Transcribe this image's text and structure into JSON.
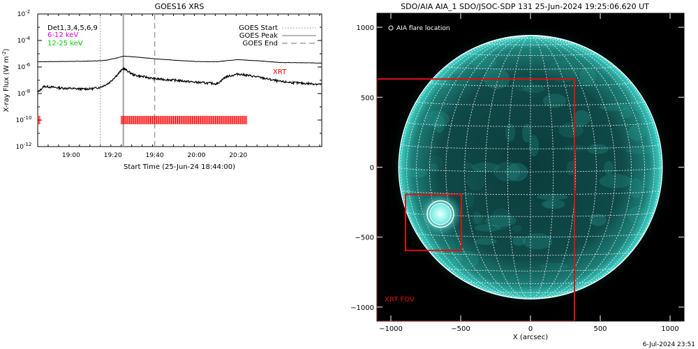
{
  "goes_panel": {
    "title": "GOES16 XRS",
    "ylabel": "X-ray Flux (W m",
    "ylabel_exp": "-2",
    "ylabel_close": ")",
    "xlabel": "Start Time (25-Jun-24 18:44:00)",
    "det_label": "Det1,3,4,5,6,9",
    "band_6_12": "6-12 keV",
    "band_12_25": "12-25 keV",
    "xrt_label": "XRT",
    "legend": [
      {
        "label": "GOES Start",
        "style": "dotted"
      },
      {
        "label": "GOES Peak",
        "style": "solid"
      },
      {
        "label": "GOES End",
        "style": "dashed"
      }
    ],
    "colors": {
      "band_6_12": "#e000e0",
      "band_12_25": "#00d000",
      "xrt": "#ff0000",
      "marker": "#a0a0a0"
    }
  },
  "aia_panel": {
    "title": "SDO/AIA AIA_1 SDO/JSOC-SDP 131 25-Jun-2024 19:25:06.620 UT",
    "legend_label": "AIA flare location",
    "fov_label": "XRT FOV",
    "xlabel": "X (arcsec)",
    "colors": {
      "disk": "#1fa8a0",
      "fov": "#e01010",
      "grid": "#ffffff"
    }
  },
  "footer": {
    "timestamp": "6-Jul-2024 23:51"
  },
  "chart_data": [
    {
      "type": "line",
      "title": "GOES16 XRS",
      "xlabel": "Start Time (25-Jun-24 18:44:00)",
      "ylabel": "X-ray Flux (W m^-2)",
      "yscale": "log",
      "xlim": [
        "18:44",
        "21:00"
      ],
      "ylim": [
        1e-12,
        0.01
      ],
      "x_ticks": [
        "19:00",
        "19:20",
        "19:40",
        "20:00",
        "20:20"
      ],
      "y_ticks": [
        {
          "mant": "10",
          "exp": "-12",
          "v": 1e-12
        },
        {
          "mant": "10",
          "exp": "-10",
          "v": 1e-10
        },
        {
          "mant": "10",
          "exp": "-8",
          "v": 1e-08
        },
        {
          "mant": "10",
          "exp": "-6",
          "v": 1e-06
        },
        {
          "mant": "10",
          "exp": "-4",
          "v": 0.0001
        },
        {
          "mant": "10",
          "exp": "-2",
          "v": 0.01
        }
      ],
      "series": [
        {
          "x": [
            "18:44",
            "18:55",
            "19:05",
            "19:12",
            "19:17",
            "19:21",
            "19:25",
            "19:32",
            "19:40",
            "19:50",
            "20:00",
            "20:10",
            "20:14",
            "20:20",
            "20:30",
            "20:40",
            "20:50",
            "21:00"
          ],
          "y": [
            2.5e-06,
            2.6e-06,
            2.7e-06,
            2.9e-06,
            3.3e-06,
            4.5e-06,
            6.5e-06,
            5.5e-06,
            4.2e-06,
            3.2e-06,
            2.6e-06,
            2.5e-06,
            3e-06,
            3.6e-06,
            2.9e-06,
            2.2e-06,
            2.1e-06,
            2e-06
          ]
        },
        {
          "x": [
            "18:44",
            "18:47",
            "18:55",
            "19:05",
            "19:10",
            "19:14",
            "19:18",
            "19:22",
            "19:25",
            "19:30",
            "19:40",
            "19:50",
            "20:00",
            "20:10",
            "20:14",
            "20:20",
            "20:30",
            "20:40",
            "20:50",
            "21:00"
          ],
          "y": [
            1.2e-08,
            3.5e-08,
            2.6e-08,
            2.2e-08,
            2.3e-08,
            3e-08,
            6e-08,
            2.5e-07,
            8e-07,
            2.5e-07,
            1.3e-07,
            1e-07,
            7e-08,
            5.5e-08,
            1.8e-07,
            3e-07,
            1.7e-07,
            8e-08,
            6e-08,
            5e-08
          ]
        }
      ],
      "markers": {
        "goes_start": "19:14",
        "goes_peak": "19:25",
        "goes_end": "19:40"
      },
      "xrt_obs": [
        {
          "start": "18:44",
          "end": "18:45"
        },
        {
          "start": "19:24",
          "end": "20:24"
        }
      ]
    },
    {
      "type": "scatter",
      "title": "SDO/AIA AIA_1 SDO/JSOC-SDP 131 25-Jun-2024 19:25:06.620 UT",
      "xlabel": "X (arcsec)",
      "ylabel": "",
      "xlim": [
        -1100,
        1100
      ],
      "ylim": [
        -1100,
        1100
      ],
      "x_ticks": [
        -1000,
        -500,
        0,
        500,
        1000
      ],
      "y_ticks": [
        -1000,
        -500,
        0,
        500,
        1000
      ],
      "solar_radius": 944,
      "flare_location": {
        "x": -645,
        "y": -335
      },
      "xrt_fov": {
        "x0": -1100,
        "x1": 315,
        "y0": -1100,
        "y1": 630
      },
      "flare_box": {
        "x0": -895,
        "x1": -495,
        "y0": -595,
        "y1": -195
      }
    }
  ]
}
